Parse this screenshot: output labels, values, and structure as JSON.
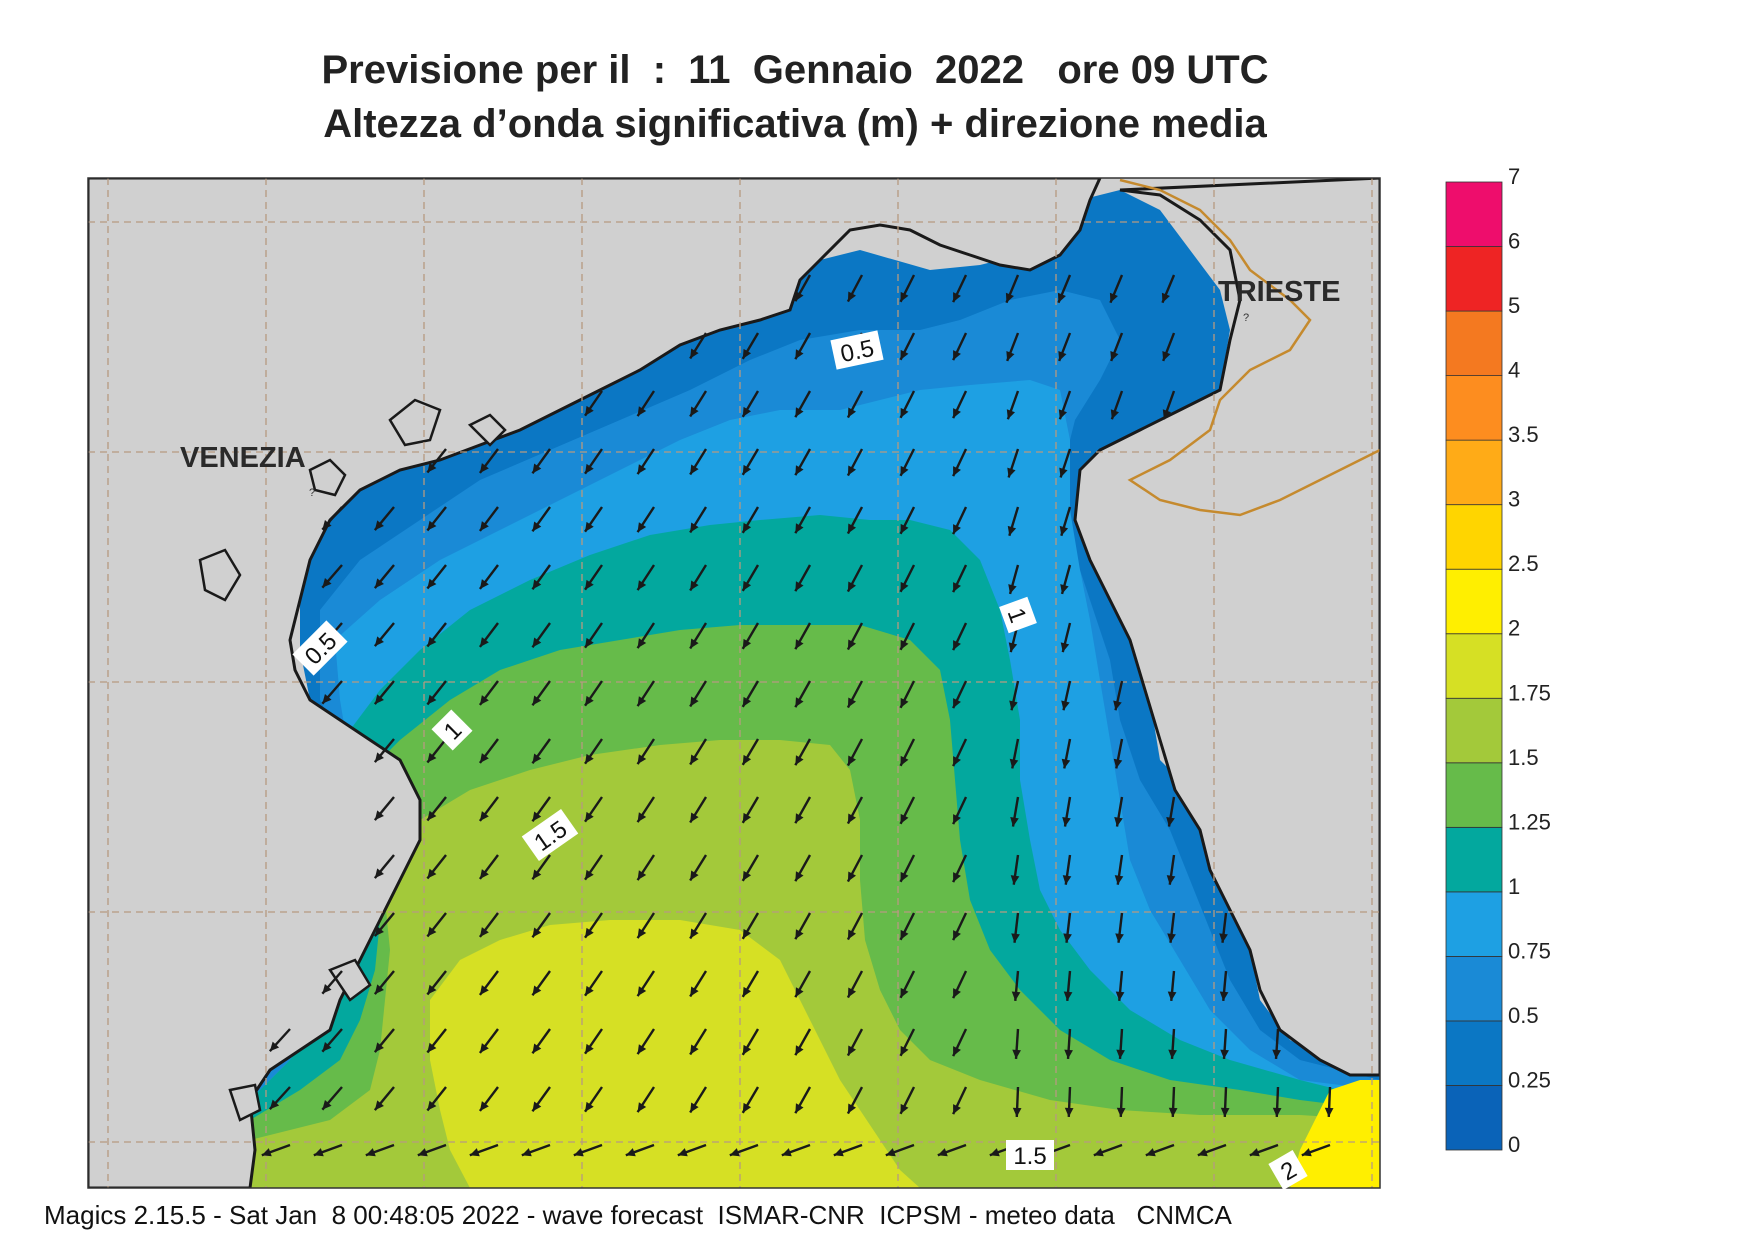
{
  "title_line1": "Previsione per il  :  11  Gennaio  2022   ore 09 UTC",
  "title_line2": "Altezza d’onda significativa (m) + direzione media",
  "footer": "Magics 2.15.5 - Sat Jan  8 00:48:05 2022 - wave forecast  ISMAR-CNR  ICPSM - meteo data   CNMCA",
  "places": {
    "venezia": "VENEZIA",
    "trieste": "TRIESTE",
    "unknown_mark": "?"
  },
  "colorbar": {
    "ticks": [
      "0",
      "0.25",
      "0.5",
      "0.75",
      "1",
      "1.25",
      "1.5",
      "1.75",
      "2",
      "2.5",
      "3",
      "3.5",
      "4",
      "5",
      "6",
      "7"
    ],
    "colors": [
      "#0a63b8",
      "#0b77c4",
      "#1a8ad6",
      "#1ea0e3",
      "#03a89e",
      "#66bb4a",
      "#a3c93a",
      "#d6e024",
      "#ffef00",
      "#ffd500",
      "#ffab17",
      "#fd8d1f",
      "#f47920",
      "#ee2424",
      "#ee0d6c"
    ]
  },
  "contour_labels": [
    "0.5",
    "0.5",
    "1",
    "1",
    "1.5",
    "1.5",
    "2"
  ],
  "colors": {
    "land": "#d0d0d0",
    "coast": "#1a1a1a",
    "border": "#c58a2e",
    "grid": "#b69a80",
    "arrow": "#1a1a1a"
  }
}
